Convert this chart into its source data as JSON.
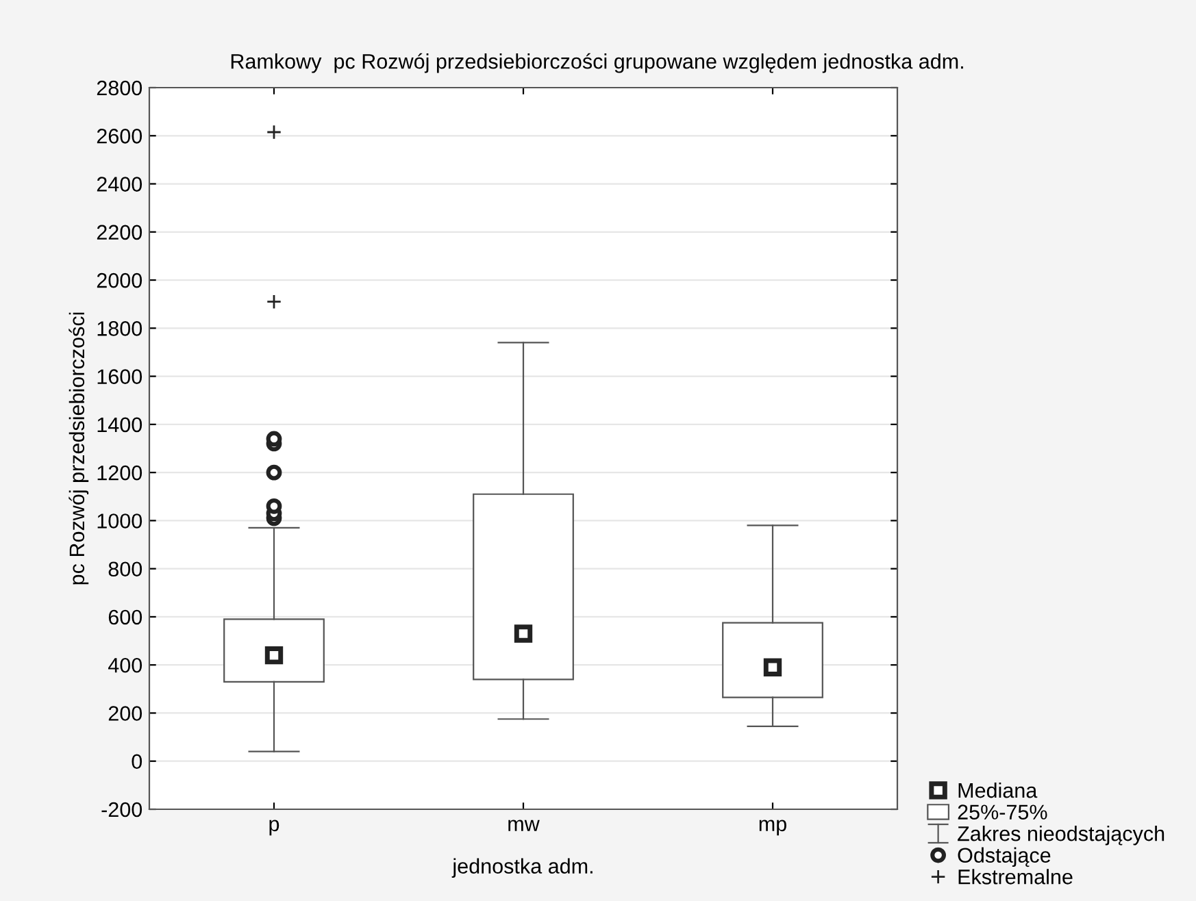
{
  "chart_data": {
    "type": "box",
    "title": "Ramkowy  pc Rozwój przedsiebiorczości grupowane względem jednostka adm.",
    "xlabel": "jednostka adm.",
    "ylabel": "pc Rozwój przedsiebiorczości",
    "categories": [
      "p",
      "mw",
      "mp"
    ],
    "series": [
      {
        "type": "box",
        "name": "25%-75%",
        "color": "#ffffff",
        "boxes": [
          {
            "low": 40,
            "q1": 330,
            "median": 440,
            "q3": 590,
            "high": 970,
            "outliers": [
              1010,
              1030,
              1060,
              1200,
              1320,
              1340
            ]
          },
          {
            "low": 175,
            "q1": 340,
            "median": 530,
            "q3": 1110,
            "high": 1740
          },
          {
            "low": 145,
            "q1": 265,
            "median": 390,
            "q3": 575,
            "high": 980
          }
        ]
      },
      {
        "type": "scatter",
        "name": "Ekstremalne",
        "color": "#222222",
        "marker": "cross",
        "x": [
          "p",
          "p"
        ],
        "values": [
          2615,
          1910
        ]
      }
    ],
    "annotations": [
      "Mediana",
      "Zakres nieodstających",
      "Odstające"
    ],
    "ylim": [
      -200,
      2800
    ],
    "yticks": [
      -200,
      0,
      200,
      400,
      600,
      800,
      1000,
      1200,
      1400,
      1600,
      1800,
      2000,
      2200,
      2400,
      2600,
      2800
    ],
    "grid": "y",
    "legend": "bottom right"
  }
}
